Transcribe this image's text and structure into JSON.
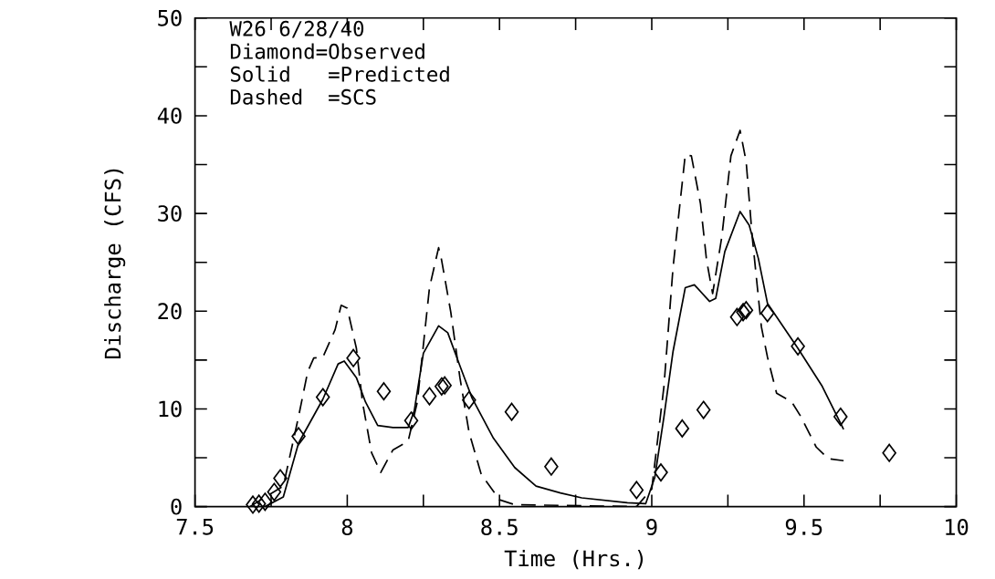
{
  "chart_data": {
    "type": "line",
    "title": "W26 6/28/40",
    "annotations": [
      "Diamond=Observed",
      "Solid   =Predicted",
      "Dashed  =SCS"
    ],
    "xlabel": "Time  (Hrs.)",
    "ylabel": "Discharge  (CFS)",
    "xlim": [
      7.5,
      10
    ],
    "ylim": [
      0,
      50
    ],
    "xticks": [
      7.5,
      {
        "value": 7.75,
        "label": null
      },
      8,
      {
        "value": 8.25,
        "label": null
      },
      8.5,
      {
        "value": 8.75,
        "label": null
      },
      9,
      {
        "value": 9.25,
        "label": null
      },
      9.5,
      {
        "value": 9.75,
        "label": null
      },
      10
    ],
    "yticks": [
      0,
      {
        "value": 5,
        "label": null
      },
      10,
      {
        "value": 15,
        "label": null
      },
      20,
      {
        "value": 25,
        "label": null
      },
      30,
      {
        "value": 35,
        "label": null
      },
      40,
      {
        "value": 45,
        "label": null
      },
      50
    ],
    "series": [
      {
        "type": "scatter",
        "marker": "diamond",
        "color": "#000000",
        "x": [
          7.69,
          7.71,
          7.73,
          7.76,
          7.78,
          7.84,
          7.92,
          8.02,
          8.12,
          8.21,
          8.27,
          8.31,
          8.32,
          8.4,
          8.54,
          8.67,
          8.95,
          9.03,
          9.1,
          9.17,
          9.28,
          9.3,
          9.31,
          9.38,
          9.48,
          9.62,
          9.78
        ],
        "values": [
          0.2,
          0.3,
          0.5,
          1.5,
          2.9,
          7.2,
          11.2,
          15.2,
          11.8,
          8.8,
          11.3,
          12.3,
          12.4,
          10.9,
          9.7,
          4.1,
          1.7,
          3.5,
          8.0,
          9.9,
          19.4,
          19.9,
          20.1,
          19.8,
          16.4,
          9.2,
          5.5
        ]
      },
      {
        "line_style": "solid",
        "marker": "none",
        "color": "#000000",
        "x": [
          7.73,
          7.79,
          7.84,
          7.92,
          7.97,
          7.99,
          8.03,
          8.06,
          8.1,
          8.15,
          8.2,
          8.22,
          8.25,
          8.3,
          8.33,
          8.37,
          8.41,
          8.48,
          8.55,
          8.62,
          8.7,
          8.77,
          8.92,
          8.98,
          9.01,
          9.04,
          9.07,
          9.11,
          9.14,
          9.19,
          9.21,
          9.24,
          9.29,
          9.32,
          9.35,
          9.38,
          9.48,
          9.56,
          9.63
        ],
        "values": [
          0,
          1,
          6.5,
          11.0,
          14.6,
          14.9,
          13.2,
          10.7,
          8.3,
          8.1,
          8.1,
          9.8,
          15.7,
          18.5,
          17.8,
          14.4,
          11.1,
          7.0,
          4.0,
          2.1,
          1.4,
          0.9,
          0.4,
          0.3,
          3.0,
          9.2,
          15.9,
          22.4,
          22.7,
          21.0,
          21.3,
          26.1,
          30.2,
          28.8,
          25.4,
          20.8,
          16.2,
          12.3,
          7.9
        ]
      },
      {
        "line_style": "dashed",
        "marker": "none",
        "color": "#000000",
        "x": [
          7.68,
          7.79,
          7.84,
          7.87,
          7.89,
          7.92,
          7.96,
          7.98,
          8.0,
          8.03,
          8.05,
          8.08,
          8.11,
          8.15,
          8.2,
          8.23,
          8.27,
          8.3,
          8.31,
          8.34,
          8.37,
          8.4,
          8.44,
          8.5,
          8.55,
          8.95,
          9.0,
          9.04,
          9.07,
          9.11,
          9.13,
          9.16,
          9.18,
          9.2,
          9.23,
          9.26,
          9.29,
          9.31,
          9.33,
          9.36,
          9.38,
          9.41,
          9.46,
          9.49,
          9.54,
          9.58,
          9.63
        ],
        "values": [
          0,
          2.1,
          9.2,
          13.8,
          15.2,
          15.3,
          18.1,
          20.6,
          20.3,
          16.2,
          10.7,
          5.5,
          3.5,
          5.8,
          6.7,
          10.7,
          22.4,
          26.5,
          25.2,
          19.9,
          13.2,
          7.6,
          3.3,
          0.7,
          0.2,
          0,
          1.8,
          12.3,
          24.5,
          36.0,
          35.9,
          31.0,
          25.2,
          21.8,
          27.6,
          35.9,
          38.5,
          35.3,
          27.6,
          18.4,
          15.3,
          11.6,
          10.7,
          9.2,
          6.1,
          4.9,
          4.7
        ]
      }
    ]
  }
}
